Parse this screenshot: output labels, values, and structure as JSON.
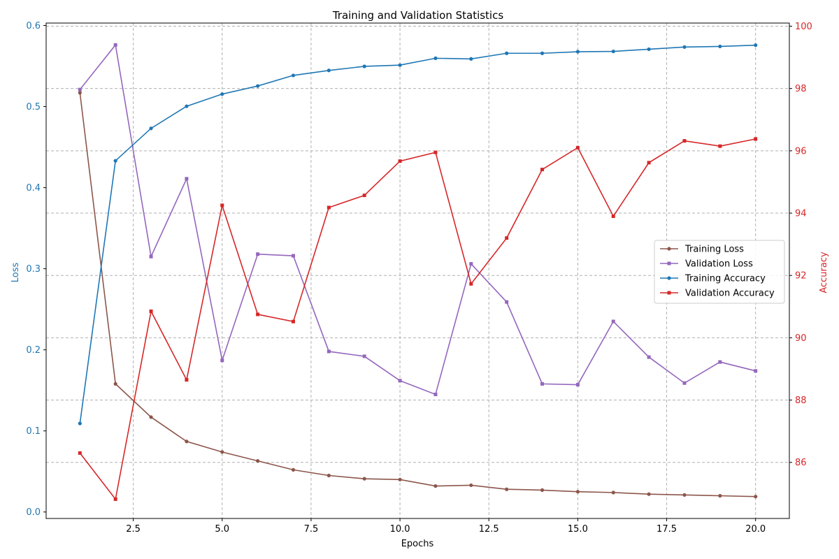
{
  "chart_data": {
    "type": "line",
    "title": "Training and Validation Statistics",
    "xlabel": "Epochs",
    "ylabel_left": "Loss",
    "ylabel_right": "Accuracy",
    "xlim": [
      0.05,
      20.95
    ],
    "ylim_left": [
      -0.008,
      0.603
    ],
    "ylim_right": [
      84.2,
      100.1
    ],
    "x_ticks": [
      2.5,
      5.0,
      7.5,
      10.0,
      12.5,
      15.0,
      17.5,
      20.0
    ],
    "x_tick_labels": [
      "2.5",
      "5.0",
      "7.5",
      "10.0",
      "12.5",
      "15.0",
      "17.5",
      "20.0"
    ],
    "y_left_ticks": [
      0.0,
      0.1,
      0.2,
      0.3,
      0.4,
      0.5,
      0.6
    ],
    "y_left_tick_labels": [
      "0.0",
      "0.1",
      "0.2",
      "0.3",
      "0.4",
      "0.5",
      "0.6"
    ],
    "y_right_ticks": [
      86,
      88,
      90,
      92,
      94,
      96,
      98,
      100
    ],
    "y_right_tick_labels": [
      "86",
      "88",
      "90",
      "92",
      "94",
      "96",
      "98",
      "100"
    ],
    "grid": true,
    "legend_position": "center-right",
    "x": [
      1,
      2,
      3,
      4,
      5,
      6,
      7,
      8,
      9,
      10,
      11,
      12,
      13,
      14,
      15,
      16,
      17,
      18,
      19,
      20
    ],
    "series": [
      {
        "name": "Training Loss",
        "axis": "left",
        "color": "#8c564b",
        "marker": "circle",
        "values": [
          0.517,
          0.158,
          0.117,
          0.087,
          0.074,
          0.063,
          0.052,
          0.045,
          0.041,
          0.04,
          0.032,
          0.033,
          0.028,
          0.027,
          0.025,
          0.024,
          0.022,
          0.021,
          0.02,
          0.019
        ]
      },
      {
        "name": "Validation Loss",
        "axis": "left",
        "color": "#9467bd",
        "marker": "square",
        "values": [
          0.521,
          0.576,
          0.315,
          0.411,
          0.187,
          0.318,
          0.316,
          0.198,
          0.192,
          0.162,
          0.145,
          0.306,
          0.259,
          0.158,
          0.157,
          0.235,
          0.191,
          0.159,
          0.185,
          0.174
        ]
      },
      {
        "name": "Training Accuracy",
        "axis": "right",
        "color": "#1f77b4",
        "marker": "circle",
        "values": [
          87.25,
          95.68,
          96.72,
          97.43,
          97.82,
          98.08,
          98.42,
          98.58,
          98.71,
          98.75,
          98.97,
          98.95,
          99.13,
          99.13,
          99.18,
          99.19,
          99.26,
          99.33,
          99.35,
          99.39
        ]
      },
      {
        "name": "Validation Accuracy",
        "axis": "right",
        "color": "#d62728",
        "marker": "square",
        "values": [
          86.3,
          84.82,
          90.85,
          88.65,
          94.25,
          90.75,
          90.52,
          94.18,
          94.57,
          95.67,
          95.95,
          91.73,
          93.2,
          95.4,
          96.1,
          93.9,
          95.62,
          96.32,
          96.15,
          96.38
        ]
      }
    ]
  }
}
